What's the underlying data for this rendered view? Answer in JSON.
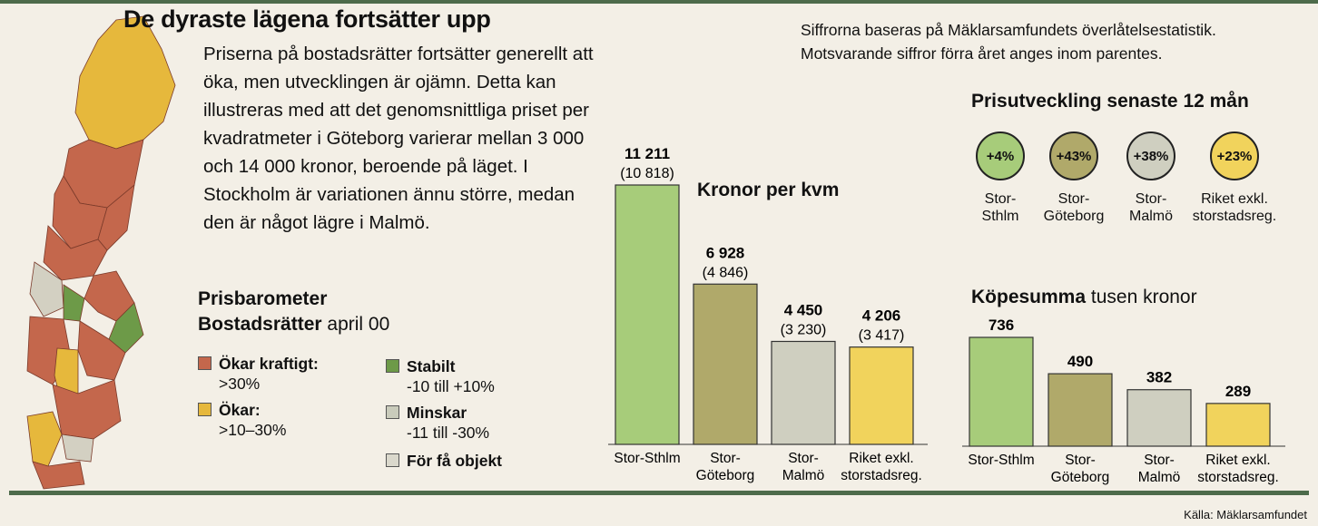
{
  "title": "De dyraste lägena fortsätter upp",
  "intro": "Priserna på bostadsrätter fortsätter generellt att öka, men utvecklingen är ojämn. Detta kan illustreras med att det genomsnittliga priset per kvadratmeter i Göteborg varierar mellan 3 000 och 14 000 kronor, beroende på läget. I Stockholm är variationen ännu större, medan den är något lägre i Malmö.",
  "note": "Siffrorna baseras på Mäklarsamfundets överlåtelsestatistik. Motsvarande siffror förra året anges inom parentes.",
  "source": "Källa: Mäklarsamfundet",
  "prisbarometer": {
    "title_line1": "Prisbarometer",
    "title_bold2": "Bostadsrätter",
    "title_thin2": "april 00",
    "legend": [
      {
        "label": "Ökar kraftigt:",
        "range": ">30%",
        "color": "#c4674c"
      },
      {
        "label": "Ökar:",
        "range": ">10–30%",
        "color": "#e6b83c"
      },
      {
        "label": "Stabilt",
        "range": "-10 till +10%",
        "color": "#6d9a48"
      },
      {
        "label": "Minskar",
        "range": "-11 till -30%",
        "color": "#c9cbbb"
      },
      {
        "label": "För få objekt",
        "range": "",
        "color": "#dad8cc"
      }
    ]
  },
  "colors": {
    "map_red": "#c4674c",
    "map_yellow": "#e6b83c",
    "map_green": "#6d9a48",
    "map_grey": "#d3d0c2",
    "rule": "#4d6b4b"
  },
  "chart_data": [
    {
      "type": "bar",
      "title": "Kronor per kvm",
      "categories": [
        "Stor-Sthlm",
        "Stor-Göteborg",
        "Stor-Malmö",
        "Riket exkl. storstadsreg."
      ],
      "category_lines": [
        [
          "Stor-Sthlm"
        ],
        [
          "Stor-",
          "Göteborg"
        ],
        [
          "Stor-",
          "Malmö"
        ],
        [
          "Riket exkl.",
          "storstadsreg."
        ]
      ],
      "values": [
        11211,
        6928,
        4450,
        4206
      ],
      "value_labels": [
        "11 211",
        "6 928",
        "4 450",
        "4 206"
      ],
      "previous_year": [
        10818,
        4846,
        3230,
        3417
      ],
      "previous_labels": [
        "(10 818)",
        "(4 846)",
        "(3 230)",
        "(3 417)"
      ],
      "colors": [
        "#a7cc7a",
        "#b0a96a",
        "#cfcfc0",
        "#f1d35c"
      ],
      "ylim": [
        0,
        11211
      ]
    },
    {
      "type": "bar",
      "title": "Köpesumma",
      "subtitle": "tusen kronor",
      "categories": [
        "Stor-Sthlm",
        "Stor-Göteborg",
        "Stor-Malmö",
        "Riket exkl. storstadsreg."
      ],
      "category_lines": [
        [
          "Stor-Sthlm"
        ],
        [
          "Stor-",
          "Göteborg"
        ],
        [
          "Stor-",
          "Malmö"
        ],
        [
          "Riket exkl.",
          "storstadsreg."
        ]
      ],
      "values": [
        736,
        490,
        382,
        289
      ],
      "value_labels": [
        "736",
        "490",
        "382",
        "289"
      ],
      "colors": [
        "#a7cc7a",
        "#b0a96a",
        "#cfcfc0",
        "#f1d35c"
      ],
      "ylim": [
        0,
        736
      ]
    },
    {
      "type": "table",
      "title": "Prisutveckling senaste 12 mån",
      "categories": [
        "Stor-Sthlm",
        "Stor-Göteborg",
        "Stor-Malmö",
        "Riket exkl. storstadsreg."
      ],
      "category_lines": [
        [
          "Stor-",
          "Sthlm"
        ],
        [
          "Stor-",
          "Göteborg"
        ],
        [
          "Stor-",
          "Malmö"
        ],
        [
          "Riket exkl.",
          "storstadsreg."
        ]
      ],
      "values": [
        4,
        43,
        38,
        23
      ],
      "value_labels": [
        "+4%",
        "+43%",
        "+38%",
        "+23%"
      ],
      "colors": [
        "#a7cc7a",
        "#b0a96a",
        "#cfcfc0",
        "#f1d35c"
      ]
    }
  ]
}
